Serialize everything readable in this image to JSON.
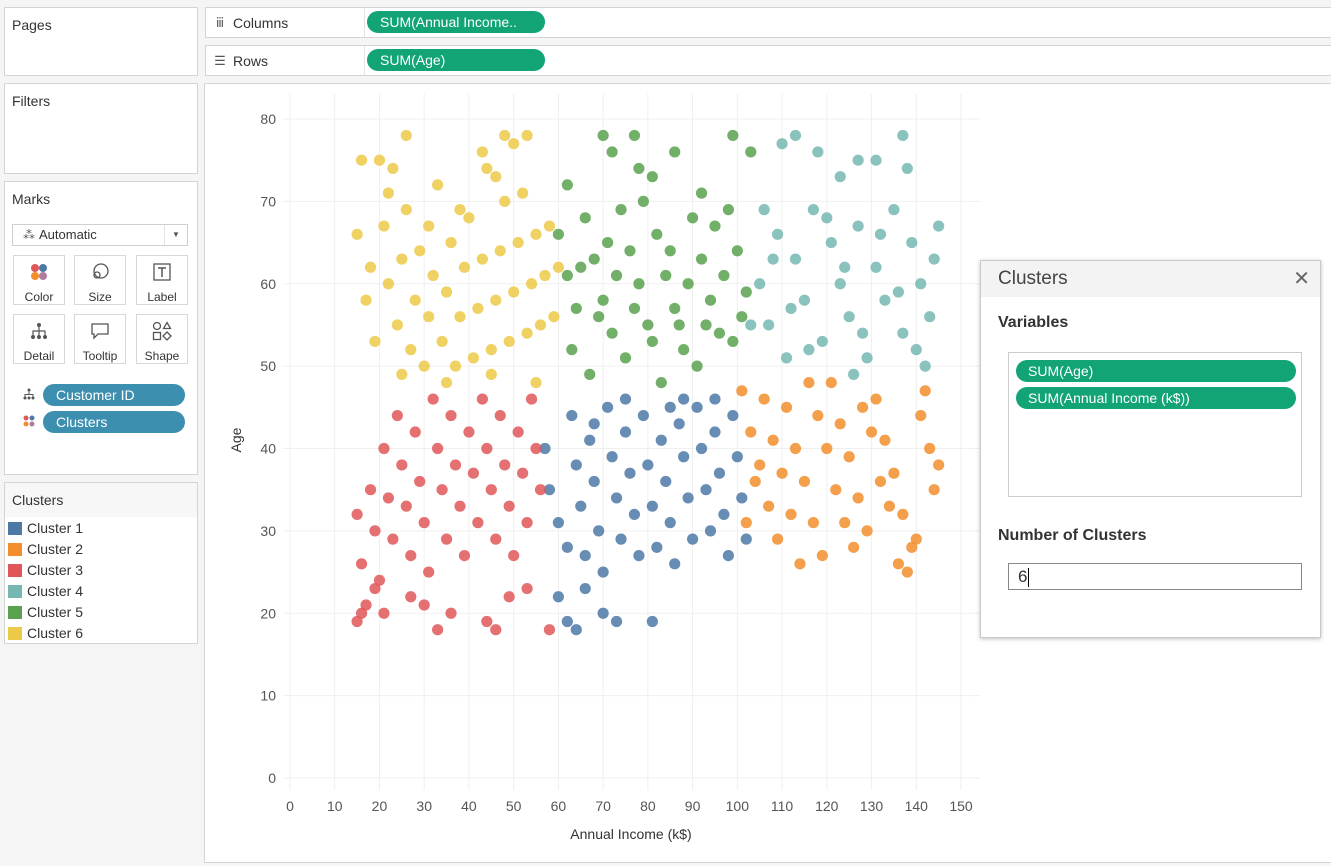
{
  "pages_card": {
    "title": "Pages"
  },
  "filters_card": {
    "title": "Filters"
  },
  "marks_card": {
    "title": "Marks",
    "mark_type": "Automatic",
    "buttons": {
      "color": "Color",
      "size": "Size",
      "label": "Label",
      "detail": "Detail",
      "tooltip": "Tooltip",
      "shape": "Shape"
    },
    "pills": {
      "detail": "Customer ID",
      "color": "Clusters"
    }
  },
  "legend": {
    "title": "Clusters",
    "items": [
      {
        "label": "Cluster 1",
        "color": "#4e79a7"
      },
      {
        "label": "Cluster 2",
        "color": "#f28e2b"
      },
      {
        "label": "Cluster 3",
        "color": "#e15759"
      },
      {
        "label": "Cluster 4",
        "color": "#76b7b2"
      },
      {
        "label": "Cluster 5",
        "color": "#59a14f"
      },
      {
        "label": "Cluster 6",
        "color": "#edc948"
      }
    ]
  },
  "shelves": {
    "columns": {
      "label": "Columns",
      "pill": "SUM(Annual Income.."
    },
    "rows": {
      "label": "Rows",
      "pill": "SUM(Age)"
    }
  },
  "dialog": {
    "title": "Clusters",
    "variables_label": "Variables",
    "variables": [
      "SUM(Age)",
      "SUM(Annual Income (k$))"
    ],
    "num_clusters_label": "Number of Clusters",
    "num_clusters_value": "6"
  },
  "chart_data": {
    "type": "scatter",
    "xlabel": "Annual Income (k$)",
    "ylabel": "Age",
    "xlim": [
      0,
      150
    ],
    "ylim": [
      0,
      80
    ],
    "xticks": [
      0,
      10,
      20,
      30,
      40,
      50,
      60,
      70,
      80,
      90,
      100,
      110,
      120,
      130,
      140,
      150
    ],
    "yticks": [
      0,
      10,
      20,
      30,
      40,
      50,
      60,
      70,
      80
    ],
    "grid": true,
    "series": [
      {
        "name": "Cluster 1",
        "color": "#4e79a7",
        "points": [
          [
            57,
            40
          ],
          [
            58,
            35
          ],
          [
            60,
            31
          ],
          [
            62,
            28
          ],
          [
            63,
            44
          ],
          [
            64,
            38
          ],
          [
            65,
            33
          ],
          [
            66,
            27
          ],
          [
            67,
            41
          ],
          [
            68,
            36
          ],
          [
            69,
            30
          ],
          [
            70,
            25
          ],
          [
            71,
            45
          ],
          [
            72,
            39
          ],
          [
            73,
            34
          ],
          [
            74,
            29
          ],
          [
            75,
            42
          ],
          [
            76,
            37
          ],
          [
            77,
            32
          ],
          [
            78,
            27
          ],
          [
            79,
            44
          ],
          [
            80,
            38
          ],
          [
            81,
            33
          ],
          [
            82,
            28
          ],
          [
            83,
            41
          ],
          [
            84,
            36
          ],
          [
            85,
            31
          ],
          [
            86,
            26
          ],
          [
            87,
            43
          ],
          [
            88,
            39
          ],
          [
            89,
            34
          ],
          [
            90,
            29
          ],
          [
            91,
            45
          ],
          [
            92,
            40
          ],
          [
            93,
            35
          ],
          [
            94,
            30
          ],
          [
            95,
            42
          ],
          [
            96,
            37
          ],
          [
            97,
            32
          ],
          [
            98,
            27
          ],
          [
            99,
            44
          ],
          [
            100,
            39
          ],
          [
            101,
            34
          ],
          [
            102,
            29
          ],
          [
            62,
            19
          ],
          [
            64,
            18
          ],
          [
            66,
            23
          ],
          [
            70,
            20
          ],
          [
            73,
            19
          ],
          [
            81,
            19
          ],
          [
            60,
            22
          ],
          [
            68,
            43
          ],
          [
            75,
            46
          ],
          [
            85,
            45
          ],
          [
            95,
            46
          ],
          [
            88,
            46
          ]
        ]
      },
      {
        "name": "Cluster 2",
        "color": "#f28e2b",
        "points": [
          [
            101,
            47
          ],
          [
            103,
            42
          ],
          [
            105,
            38
          ],
          [
            107,
            33
          ],
          [
            109,
            29
          ],
          [
            111,
            45
          ],
          [
            113,
            40
          ],
          [
            115,
            36
          ],
          [
            117,
            31
          ],
          [
            119,
            27
          ],
          [
            121,
            48
          ],
          [
            123,
            43
          ],
          [
            125,
            39
          ],
          [
            127,
            34
          ],
          [
            129,
            30
          ],
          [
            131,
            46
          ],
          [
            133,
            41
          ],
          [
            135,
            37
          ],
          [
            137,
            32
          ],
          [
            139,
            28
          ],
          [
            141,
            44
          ],
          [
            143,
            40
          ],
          [
            144,
            35
          ],
          [
            102,
            31
          ],
          [
            106,
            46
          ],
          [
            110,
            37
          ],
          [
            114,
            26
          ],
          [
            118,
            44
          ],
          [
            122,
            35
          ],
          [
            126,
            28
          ],
          [
            130,
            42
          ],
          [
            134,
            33
          ],
          [
            138,
            25
          ],
          [
            142,
            47
          ],
          [
            145,
            38
          ],
          [
            108,
            41
          ],
          [
            116,
            48
          ],
          [
            124,
            31
          ],
          [
            132,
            36
          ],
          [
            140,
            29
          ],
          [
            104,
            36
          ],
          [
            112,
            32
          ],
          [
            120,
            40
          ],
          [
            128,
            45
          ],
          [
            136,
            26
          ]
        ]
      },
      {
        "name": "Cluster 3",
        "color": "#e15759",
        "points": [
          [
            15,
            32
          ],
          [
            16,
            26
          ],
          [
            17,
            21
          ],
          [
            18,
            35
          ],
          [
            19,
            30
          ],
          [
            20,
            24
          ],
          [
            21,
            40
          ],
          [
            22,
            34
          ],
          [
            23,
            29
          ],
          [
            24,
            44
          ],
          [
            25,
            38
          ],
          [
            26,
            33
          ],
          [
            27,
            27
          ],
          [
            28,
            42
          ],
          [
            29,
            36
          ],
          [
            30,
            31
          ],
          [
            31,
            25
          ],
          [
            32,
            46
          ],
          [
            33,
            40
          ],
          [
            34,
            35
          ],
          [
            35,
            29
          ],
          [
            36,
            44
          ],
          [
            37,
            38
          ],
          [
            38,
            33
          ],
          [
            39,
            27
          ],
          [
            40,
            42
          ],
          [
            41,
            37
          ],
          [
            42,
            31
          ],
          [
            43,
            46
          ],
          [
            44,
            40
          ],
          [
            45,
            35
          ],
          [
            46,
            29
          ],
          [
            47,
            44
          ],
          [
            48,
            38
          ],
          [
            49,
            33
          ],
          [
            50,
            27
          ],
          [
            51,
            42
          ],
          [
            52,
            37
          ],
          [
            53,
            31
          ],
          [
            54,
            46
          ],
          [
            55,
            40
          ],
          [
            56,
            35
          ],
          [
            15,
            19
          ],
          [
            16,
            20
          ],
          [
            19,
            23
          ],
          [
            21,
            20
          ],
          [
            27,
            22
          ],
          [
            30,
            21
          ],
          [
            33,
            18
          ],
          [
            36,
            20
          ],
          [
            44,
            19
          ],
          [
            46,
            18
          ],
          [
            49,
            22
          ],
          [
            53,
            23
          ],
          [
            58,
            18
          ]
        ]
      },
      {
        "name": "Cluster 4",
        "color": "#76b7b2",
        "points": [
          [
            105,
            60
          ],
          [
            107,
            55
          ],
          [
            109,
            66
          ],
          [
            111,
            51
          ],
          [
            113,
            63
          ],
          [
            115,
            58
          ],
          [
            117,
            69
          ],
          [
            119,
            53
          ],
          [
            121,
            65
          ],
          [
            123,
            60
          ],
          [
            125,
            56
          ],
          [
            127,
            67
          ],
          [
            129,
            51
          ],
          [
            131,
            62
          ],
          [
            133,
            58
          ],
          [
            135,
            69
          ],
          [
            137,
            54
          ],
          [
            139,
            65
          ],
          [
            141,
            60
          ],
          [
            143,
            56
          ],
          [
            145,
            67
          ],
          [
            106,
            69
          ],
          [
            108,
            63
          ],
          [
            112,
            57
          ],
          [
            116,
            52
          ],
          [
            120,
            68
          ],
          [
            124,
            62
          ],
          [
            128,
            54
          ],
          [
            132,
            66
          ],
          [
            136,
            59
          ],
          [
            140,
            52
          ],
          [
            144,
            63
          ],
          [
            110,
            77
          ],
          [
            113,
            78
          ],
          [
            118,
            76
          ],
          [
            123,
            73
          ],
          [
            127,
            75
          ],
          [
            131,
            75
          ],
          [
            137,
            78
          ],
          [
            138,
            74
          ],
          [
            103,
            55
          ],
          [
            142,
            50
          ],
          [
            126,
            49
          ]
        ]
      },
      {
        "name": "Cluster 5",
        "color": "#59a14f",
        "points": [
          [
            60,
            66
          ],
          [
            62,
            61
          ],
          [
            64,
            57
          ],
          [
            66,
            68
          ],
          [
            68,
            63
          ],
          [
            70,
            58
          ],
          [
            72,
            54
          ],
          [
            74,
            69
          ],
          [
            76,
            64
          ],
          [
            78,
            60
          ],
          [
            80,
            55
          ],
          [
            82,
            66
          ],
          [
            84,
            61
          ],
          [
            86,
            57
          ],
          [
            88,
            52
          ],
          [
            90,
            68
          ],
          [
            92,
            63
          ],
          [
            94,
            58
          ],
          [
            96,
            54
          ],
          [
            98,
            69
          ],
          [
            100,
            64
          ],
          [
            102,
            59
          ],
          [
            63,
            52
          ],
          [
            67,
            49
          ],
          [
            71,
            65
          ],
          [
            75,
            51
          ],
          [
            79,
            70
          ],
          [
            83,
            48
          ],
          [
            87,
            55
          ],
          [
            91,
            50
          ],
          [
            95,
            67
          ],
          [
            99,
            53
          ],
          [
            65,
            62
          ],
          [
            69,
            56
          ],
          [
            73,
            61
          ],
          [
            77,
            57
          ],
          [
            81,
            53
          ],
          [
            85,
            64
          ],
          [
            89,
            60
          ],
          [
            93,
            55
          ],
          [
            97,
            61
          ],
          [
            101,
            56
          ],
          [
            70,
            78
          ],
          [
            72,
            76
          ],
          [
            77,
            78
          ],
          [
            78,
            74
          ],
          [
            81,
            73
          ],
          [
            86,
            76
          ],
          [
            99,
            78
          ],
          [
            103,
            76
          ],
          [
            92,
            71
          ],
          [
            62,
            72
          ]
        ]
      },
      {
        "name": "Cluster 6",
        "color": "#edc948",
        "points": [
          [
            15,
            66
          ],
          [
            16,
            75
          ],
          [
            17,
            58
          ],
          [
            18,
            62
          ],
          [
            19,
            53
          ],
          [
            20,
            75
          ],
          [
            21,
            67
          ],
          [
            22,
            60
          ],
          [
            23,
            74
          ],
          [
            24,
            55
          ],
          [
            25,
            63
          ],
          [
            26,
            69
          ],
          [
            27,
            52
          ],
          [
            28,
            58
          ],
          [
            29,
            64
          ],
          [
            30,
            50
          ],
          [
            31,
            56
          ],
          [
            32,
            61
          ],
          [
            33,
            72
          ],
          [
            34,
            53
          ],
          [
            35,
            59
          ],
          [
            36,
            65
          ],
          [
            37,
            50
          ],
          [
            38,
            56
          ],
          [
            39,
            62
          ],
          [
            40,
            68
          ],
          [
            41,
            51
          ],
          [
            42,
            57
          ],
          [
            43,
            63
          ],
          [
            44,
            74
          ],
          [
            45,
            52
          ],
          [
            46,
            58
          ],
          [
            47,
            64
          ],
          [
            48,
            70
          ],
          [
            49,
            53
          ],
          [
            50,
            59
          ],
          [
            51,
            65
          ],
          [
            52,
            71
          ],
          [
            53,
            54
          ],
          [
            54,
            60
          ],
          [
            55,
            66
          ],
          [
            56,
            55
          ],
          [
            57,
            61
          ],
          [
            58,
            67
          ],
          [
            59,
            56
          ],
          [
            60,
            62
          ],
          [
            22,
            71
          ],
          [
            26,
            78
          ],
          [
            43,
            76
          ],
          [
            48,
            78
          ],
          [
            50,
            77
          ],
          [
            53,
            78
          ],
          [
            46,
            73
          ],
          [
            38,
            69
          ],
          [
            31,
            67
          ],
          [
            25,
            49
          ],
          [
            35,
            48
          ],
          [
            45,
            49
          ],
          [
            55,
            48
          ]
        ]
      }
    ]
  }
}
